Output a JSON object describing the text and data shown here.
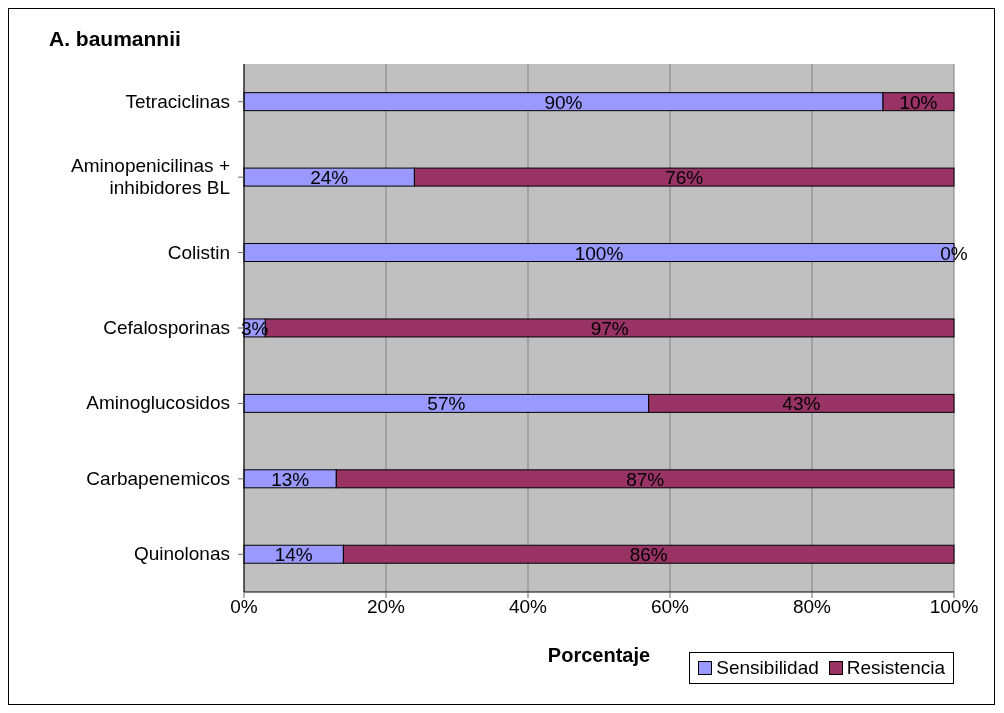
{
  "chart_data": {
    "type": "bar",
    "orientation": "horizontal",
    "stacked": true,
    "title": "A. baumannii",
    "xlabel": "Porcentaje",
    "categories": [
      "Tetraciclinas",
      "Aminopenicilinas + inhibidores BL",
      "Colistin",
      "Cefalosporinas",
      "Aminoglucosidos",
      "Carbapenemicos",
      "Quinolonas"
    ],
    "series": [
      {
        "name": "Sensibilidad",
        "color": "#9999ff",
        "values": [
          90,
          24,
          100,
          3,
          57,
          13,
          14
        ],
        "value_labels": [
          "90%",
          "24%",
          "100%",
          "3%",
          "57%",
          "13%",
          "14%"
        ]
      },
      {
        "name": "Resistencia",
        "color": "#993366",
        "values": [
          10,
          76,
          0,
          97,
          43,
          87,
          86
        ],
        "value_labels": [
          "10%",
          "76%",
          "0%",
          "97%",
          "43%",
          "87%",
          "86%"
        ]
      }
    ],
    "xlim": [
      0,
      100
    ],
    "xticks": [
      {
        "value": 0,
        "label": "0%"
      },
      {
        "value": 20,
        "label": "20%"
      },
      {
        "value": 40,
        "label": "40%"
      },
      {
        "value": 60,
        "label": "60%"
      },
      {
        "value": 80,
        "label": "80%"
      },
      {
        "value": 100,
        "label": "100%"
      }
    ],
    "grid": "x",
    "legend": "bottom right"
  }
}
